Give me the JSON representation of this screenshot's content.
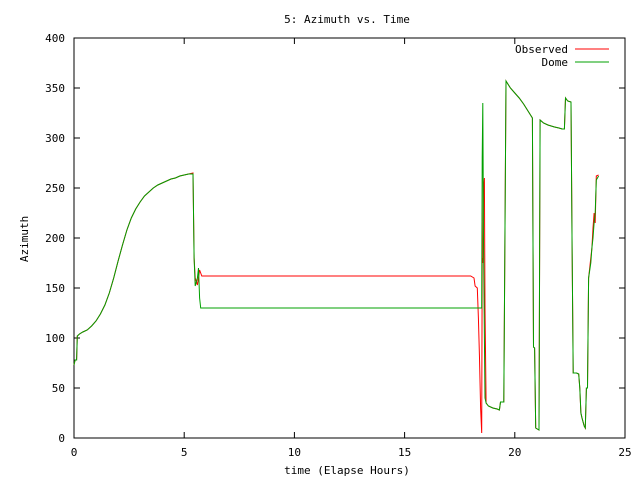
{
  "chart_data": {
    "type": "line",
    "title": "5: Azimuth vs. Time",
    "xlabel": "time (Elapse Hours)",
    "ylabel": "Azimuth",
    "xlim": [
      0,
      25
    ],
    "ylim": [
      0,
      400
    ],
    "xticks": [
      "0",
      "5",
      "10",
      "15",
      "20",
      "25"
    ],
    "yticks": [
      "0",
      "50",
      "100",
      "150",
      "200",
      "250",
      "300",
      "350",
      "400"
    ],
    "grid": false,
    "legend_position": "top-right",
    "series": [
      {
        "name": "Observed",
        "color": "#ff0000",
        "points": [
          [
            0.0,
            73
          ],
          [
            0.05,
            78
          ],
          [
            0.12,
            78
          ],
          [
            0.15,
            102
          ],
          [
            0.25,
            104
          ],
          [
            0.4,
            106
          ],
          [
            0.6,
            108
          ],
          [
            0.8,
            112
          ],
          [
            1.0,
            117
          ],
          [
            1.2,
            124
          ],
          [
            1.4,
            133
          ],
          [
            1.6,
            145
          ],
          [
            1.8,
            160
          ],
          [
            2.0,
            177
          ],
          [
            2.2,
            193
          ],
          [
            2.4,
            208
          ],
          [
            2.6,
            220
          ],
          [
            2.8,
            229
          ],
          [
            3.0,
            236
          ],
          [
            3.2,
            242
          ],
          [
            3.4,
            246
          ],
          [
            3.6,
            250
          ],
          [
            3.8,
            253
          ],
          [
            4.0,
            255
          ],
          [
            4.2,
            257
          ],
          [
            4.4,
            259
          ],
          [
            4.6,
            260
          ],
          [
            4.8,
            262
          ],
          [
            5.0,
            263
          ],
          [
            5.2,
            264
          ],
          [
            5.4,
            265
          ],
          [
            5.45,
            180
          ],
          [
            5.5,
            160
          ],
          [
            5.6,
            153
          ],
          [
            5.7,
            168
          ],
          [
            5.8,
            162
          ],
          [
            18.0,
            162
          ],
          [
            18.15,
            160
          ],
          [
            18.2,
            152
          ],
          [
            18.3,
            150
          ],
          [
            18.35,
            120
          ],
          [
            18.4,
            80
          ],
          [
            18.45,
            30
          ],
          [
            18.5,
            5
          ],
          [
            18.52,
            180
          ],
          [
            18.55,
            175
          ],
          [
            18.58,
            250
          ],
          [
            18.62,
            260
          ],
          [
            18.65,
            130
          ],
          [
            18.7,
            35
          ],
          [
            18.8,
            32
          ],
          [
            19.0,
            30
          ],
          [
            19.2,
            29
          ],
          [
            19.3,
            28
          ],
          [
            19.35,
            36
          ],
          [
            19.5,
            36
          ],
          [
            19.6,
            357
          ],
          [
            19.8,
            350
          ],
          [
            20.0,
            345
          ],
          [
            20.2,
            340
          ],
          [
            20.4,
            334
          ],
          [
            20.6,
            327
          ],
          [
            20.8,
            320
          ],
          [
            20.85,
            91
          ],
          [
            20.9,
            90
          ],
          [
            20.95,
            10
          ],
          [
            21.1,
            8
          ],
          [
            21.15,
            318
          ],
          [
            21.3,
            315
          ],
          [
            21.5,
            313
          ],
          [
            21.8,
            311
          ],
          [
            22.0,
            310
          ],
          [
            22.15,
            309
          ],
          [
            22.25,
            309
          ],
          [
            22.3,
            340
          ],
          [
            22.4,
            337
          ],
          [
            22.55,
            336
          ],
          [
            22.6,
            190
          ],
          [
            22.65,
            65
          ],
          [
            22.8,
            65
          ],
          [
            22.9,
            64
          ],
          [
            22.95,
            50
          ],
          [
            23.0,
            25
          ],
          [
            23.05,
            20
          ],
          [
            23.15,
            12
          ],
          [
            23.2,
            10
          ],
          [
            23.25,
            50
          ],
          [
            23.3,
            50
          ],
          [
            23.35,
            160
          ],
          [
            23.5,
            190
          ],
          [
            23.55,
            210
          ],
          [
            23.6,
            225
          ],
          [
            23.65,
            215
          ],
          [
            23.7,
            262
          ],
          [
            23.8,
            263
          ]
        ]
      },
      {
        "name": "Dome",
        "color": "#00a000",
        "points": [
          [
            0.0,
            73
          ],
          [
            0.05,
            78
          ],
          [
            0.12,
            78
          ],
          [
            0.15,
            102
          ],
          [
            0.25,
            104
          ],
          [
            0.4,
            106
          ],
          [
            0.6,
            108
          ],
          [
            0.8,
            112
          ],
          [
            1.0,
            117
          ],
          [
            1.2,
            124
          ],
          [
            1.4,
            133
          ],
          [
            1.6,
            145
          ],
          [
            1.8,
            160
          ],
          [
            2.0,
            177
          ],
          [
            2.2,
            193
          ],
          [
            2.4,
            208
          ],
          [
            2.6,
            220
          ],
          [
            2.8,
            229
          ],
          [
            3.0,
            236
          ],
          [
            3.2,
            242
          ],
          [
            3.4,
            246
          ],
          [
            3.6,
            250
          ],
          [
            3.8,
            253
          ],
          [
            4.0,
            255
          ],
          [
            4.2,
            257
          ],
          [
            4.4,
            259
          ],
          [
            4.6,
            260
          ],
          [
            4.8,
            262
          ],
          [
            5.0,
            263
          ],
          [
            5.2,
            264
          ],
          [
            5.4,
            264
          ],
          [
            5.45,
            180
          ],
          [
            5.5,
            152
          ],
          [
            5.6,
            160
          ],
          [
            5.65,
            170
          ],
          [
            5.7,
            140
          ],
          [
            5.75,
            130
          ],
          [
            18.5,
            130
          ],
          [
            18.52,
            280
          ],
          [
            18.55,
            335
          ],
          [
            18.58,
            200
          ],
          [
            18.62,
            100
          ],
          [
            18.65,
            40
          ],
          [
            18.7,
            35
          ],
          [
            18.8,
            32
          ],
          [
            19.0,
            30
          ],
          [
            19.2,
            29
          ],
          [
            19.3,
            28
          ],
          [
            19.35,
            36
          ],
          [
            19.5,
            36
          ],
          [
            19.6,
            357
          ],
          [
            19.8,
            350
          ],
          [
            20.0,
            345
          ],
          [
            20.2,
            340
          ],
          [
            20.4,
            334
          ],
          [
            20.6,
            327
          ],
          [
            20.8,
            320
          ],
          [
            20.85,
            91
          ],
          [
            20.9,
            90
          ],
          [
            20.95,
            10
          ],
          [
            21.1,
            8
          ],
          [
            21.15,
            318
          ],
          [
            21.3,
            315
          ],
          [
            21.5,
            313
          ],
          [
            21.8,
            311
          ],
          [
            22.0,
            310
          ],
          [
            22.15,
            309
          ],
          [
            22.25,
            309
          ],
          [
            22.3,
            340
          ],
          [
            22.4,
            337
          ],
          [
            22.55,
            336
          ],
          [
            22.6,
            190
          ],
          [
            22.65,
            65
          ],
          [
            22.8,
            65
          ],
          [
            22.9,
            64
          ],
          [
            22.95,
            50
          ],
          [
            23.0,
            25
          ],
          [
            23.05,
            20
          ],
          [
            23.15,
            12
          ],
          [
            23.2,
            10
          ],
          [
            23.25,
            50
          ],
          [
            23.3,
            50
          ],
          [
            23.35,
            160
          ],
          [
            23.45,
            175
          ],
          [
            23.5,
            190
          ],
          [
            23.55,
            200
          ],
          [
            23.6,
            215
          ],
          [
            23.65,
            225
          ],
          [
            23.7,
            258
          ],
          [
            23.8,
            262
          ]
        ]
      }
    ]
  }
}
